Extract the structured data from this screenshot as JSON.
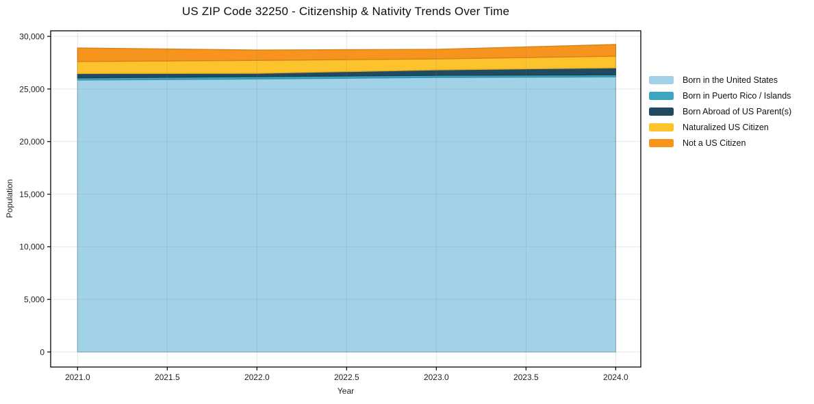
{
  "title": "US ZIP Code 32250 - Citizenship & Nativity Trends Over Time",
  "chart_data": {
    "type": "area",
    "stacked": true,
    "title": "US ZIP Code 32250 - Citizenship & Nativity Trends Over Time",
    "xlabel": "Year",
    "ylabel": "Population",
    "x": [
      2021,
      2022,
      2023,
      2024
    ],
    "series": [
      {
        "name": "Born in the United States",
        "color": "#a2d2e8",
        "values": [
          25850,
          25950,
          26100,
          26150
        ]
      },
      {
        "name": "Born in Puerto Rico / Islands",
        "color": "#3da5c2",
        "values": [
          200,
          220,
          200,
          200
        ]
      },
      {
        "name": "Born Abroad of US Parent(s)",
        "color": "#1f4a5f",
        "values": [
          420,
          320,
          520,
          660
        ]
      },
      {
        "name": "Naturalized US Citizen",
        "color": "#fcc32d",
        "values": [
          1140,
          1230,
          1040,
          1110
        ]
      },
      {
        "name": "Not a US Citizen",
        "color": "#f7941e",
        "values": [
          1290,
          980,
          910,
          1110
        ]
      }
    ],
    "xlim": [
      2020.85,
      2024.14
    ],
    "ylim": [
      -1430,
      30530
    ],
    "xticks": [
      2021.0,
      2021.5,
      2022.0,
      2022.5,
      2023.0,
      2023.5,
      2024.0
    ],
    "xticklabels": [
      "2021.0",
      "2021.5",
      "2022.0",
      "2022.5",
      "2023.0",
      "2023.5",
      "2024.0"
    ],
    "yticks": [
      0,
      5000,
      10000,
      15000,
      20000,
      25000,
      30000
    ],
    "yticklabels": [
      "0",
      "5,000",
      "10,000",
      "15,000",
      "20,000",
      "25,000",
      "30,000"
    ],
    "grid": true,
    "legend_position": "right-outside"
  }
}
